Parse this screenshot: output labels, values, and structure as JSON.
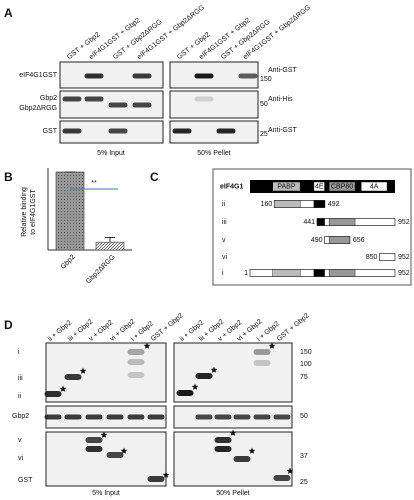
{
  "panel_a": {
    "label": "A",
    "lanes": [
      "GST + Gbp2",
      "eIF4G1GST + Gbp2",
      "GST + Gbp2ΔRGG",
      "eIF4G1GST + Gbp2ΔRGG"
    ],
    "rows": [
      "eIF4G1GST",
      "Gbp2",
      "Gbp2ΔRGG",
      "GST"
    ],
    "antibodies": [
      "Anti-GST",
      "Anti-His",
      "Anti-GST"
    ],
    "markers": [
      "150",
      "50",
      "25"
    ],
    "captions": [
      "5% Input",
      "50% Pellet"
    ]
  },
  "panel_b": {
    "label": "B",
    "type": "bar",
    "ylabel": [
      "Relative binding",
      "to eIF4G1GST"
    ],
    "categories": [
      "Gbp2",
      "Gbp2ΔRGG"
    ],
    "values": [
      100,
      10
    ],
    "errors": [
      0,
      6
    ],
    "ylim": [
      0,
      100
    ],
    "significance": "**"
  },
  "panel_c": {
    "label": "C",
    "protein": "eIF4G1",
    "domains": [
      "PABP",
      "4E",
      "CBP80",
      "4A"
    ],
    "length": 952,
    "constructs": [
      {
        "label": "ii",
        "start": 160,
        "end": 492
      },
      {
        "label": "iii",
        "start": 441,
        "end": 952
      },
      {
        "label": "v",
        "start": 490,
        "end": 656
      },
      {
        "label": "vi",
        "start": 850,
        "end": 952
      },
      {
        "label": "i",
        "start": 1,
        "end": 952
      }
    ]
  },
  "panel_d": {
    "label": "D",
    "lanes": [
      "ii + Gbp2",
      "iii + Gbp2",
      "v + Gbp2",
      "vi + Gbp2",
      "i + Gbp2",
      "GST + Gbp2"
    ],
    "rows": [
      "i",
      "iii",
      "ii",
      "Gbp2",
      "v",
      "vi",
      "GST"
    ],
    "markers": [
      "150",
      "100",
      "75",
      "50",
      "37",
      "25"
    ],
    "captions": [
      "5% Input",
      "50% Pellet"
    ]
  }
}
